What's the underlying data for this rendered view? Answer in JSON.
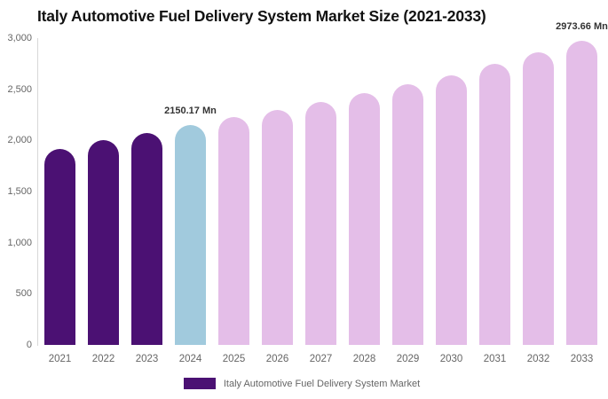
{
  "chart_data": {
    "type": "bar",
    "title": "Italy Automotive Fuel Delivery System Market Size (2021-2033)",
    "categories": [
      "2021",
      "2022",
      "2023",
      "2024",
      "2025",
      "2026",
      "2027",
      "2028",
      "2029",
      "2030",
      "2031",
      "2032",
      "2033"
    ],
    "values": [
      1920,
      2000,
      2070,
      2150.17,
      2225,
      2300,
      2380,
      2465,
      2550,
      2640,
      2750,
      2860,
      2973.66
    ],
    "unit": "Mn",
    "xlabel": "",
    "ylabel": "",
    "ylim": [
      0,
      3000
    ],
    "yticks": [
      {
        "value": 0,
        "label": "0"
      },
      {
        "value": 500,
        "label": "500"
      },
      {
        "value": 1000,
        "label": "1,000"
      },
      {
        "value": 1500,
        "label": "1,500"
      },
      {
        "value": 2000,
        "label": "2,000"
      },
      {
        "value": 2500,
        "label": "2,500"
      },
      {
        "value": 3000,
        "label": "3,000"
      }
    ],
    "grid": "off",
    "legend_position": "bottom-center",
    "legend_label": "Italy Automotive Fuel Delivery System Market",
    "annotations": [
      {
        "category": "2024",
        "text": "2150.17 Mn"
      },
      {
        "category": "2033",
        "text": "2973.66 Mn"
      }
    ],
    "bar_color_keys": [
      "historical",
      "historical",
      "historical",
      "current",
      "forecast",
      "forecast",
      "forecast",
      "forecast",
      "forecast",
      "forecast",
      "forecast",
      "forecast",
      "forecast"
    ],
    "colors": {
      "historical": "#4b1173",
      "current": "#a1cadd",
      "forecast": "#e4bee8",
      "title_text": "#111111",
      "axis_text": "#666666",
      "axis_line": "#d8d8d8",
      "value_label_text": "#333333",
      "legend_text": "#666666"
    }
  }
}
